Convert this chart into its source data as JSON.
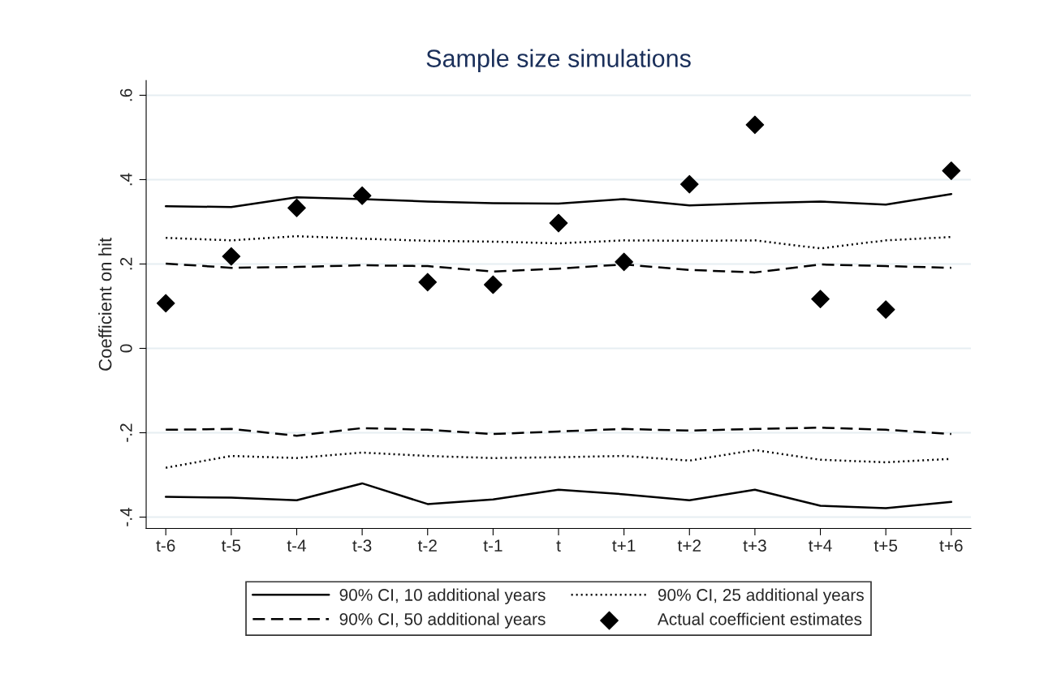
{
  "chart_data": {
    "type": "line",
    "title": "Sample size simulations",
    "ylabel": "Coefficient on hit",
    "categories": [
      "t-6",
      "t-5",
      "t-4",
      "t-3",
      "t-2",
      "t-1",
      "t",
      "t+1",
      "t+2",
      "t+3",
      "t+4",
      "t+5",
      "t+6"
    ],
    "ylim": [
      -0.427,
      0.635
    ],
    "yticks": [
      {
        "value": 0.6,
        "label": ".6"
      },
      {
        "value": 0.4,
        "label": ".4"
      },
      {
        "value": 0.2,
        "label": ".2"
      },
      0,
      {
        "value": -0.2,
        "label": "-.2"
      },
      {
        "value": -0.4,
        "label": "-.4"
      }
    ],
    "grid": "y",
    "legend": "bottom",
    "series": [
      {
        "name": "90% CI, 10 additional years",
        "type": "line",
        "line_style": "solid",
        "marker": "none",
        "color": "#000000",
        "values": [
          0.337,
          0.335,
          0.358,
          0.354,
          0.348,
          0.344,
          0.343,
          0.354,
          0.339,
          0.344,
          0.348,
          0.341,
          0.366
        ]
      },
      {
        "name": "90% CI, 25 additional years",
        "type": "line",
        "line_style": "dotted",
        "marker": "none",
        "color": "#000000",
        "values": [
          0.262,
          0.256,
          0.266,
          0.26,
          0.255,
          0.253,
          0.249,
          0.256,
          0.255,
          0.256,
          0.237,
          0.256,
          0.264
        ]
      },
      {
        "name": "90% CI, 50 additional years",
        "type": "line",
        "line_style": "dashed",
        "marker": "none",
        "color": "#000000",
        "values": [
          0.201,
          0.191,
          0.193,
          0.197,
          0.195,
          0.182,
          0.189,
          0.199,
          0.186,
          0.18,
          0.199,
          0.195,
          0.191
        ]
      },
      {
        "name": "Actual coefficient estimates",
        "type": "scatter",
        "marker": "diamond",
        "color": "#000000",
        "values": [
          0.107,
          0.218,
          0.333,
          0.362,
          0.157,
          0.151,
          0.297,
          0.205,
          0.389,
          0.53,
          0.117,
          0.092,
          0.421
        ]
      },
      {
        "type": "line",
        "line_style": "solid",
        "marker": "none",
        "color": "#000000",
        "values": [
          -0.352,
          -0.354,
          -0.36,
          -0.32,
          -0.369,
          -0.358,
          -0.335,
          -0.346,
          -0.36,
          -0.335,
          -0.373,
          -0.379,
          -0.364
        ]
      },
      {
        "type": "line",
        "line_style": "dotted",
        "marker": "none",
        "color": "#000000",
        "values": [
          -0.283,
          -0.255,
          -0.26,
          -0.247,
          -0.255,
          -0.26,
          -0.258,
          -0.255,
          -0.266,
          -0.241,
          -0.264,
          -0.27,
          -0.262
        ]
      },
      {
        "type": "line",
        "line_style": "dashed",
        "marker": "none",
        "color": "#000000",
        "values": [
          -0.193,
          -0.191,
          -0.207,
          -0.189,
          -0.193,
          -0.203,
          -0.197,
          -0.191,
          -0.195,
          -0.191,
          -0.188,
          -0.193,
          -0.203
        ]
      }
    ]
  }
}
